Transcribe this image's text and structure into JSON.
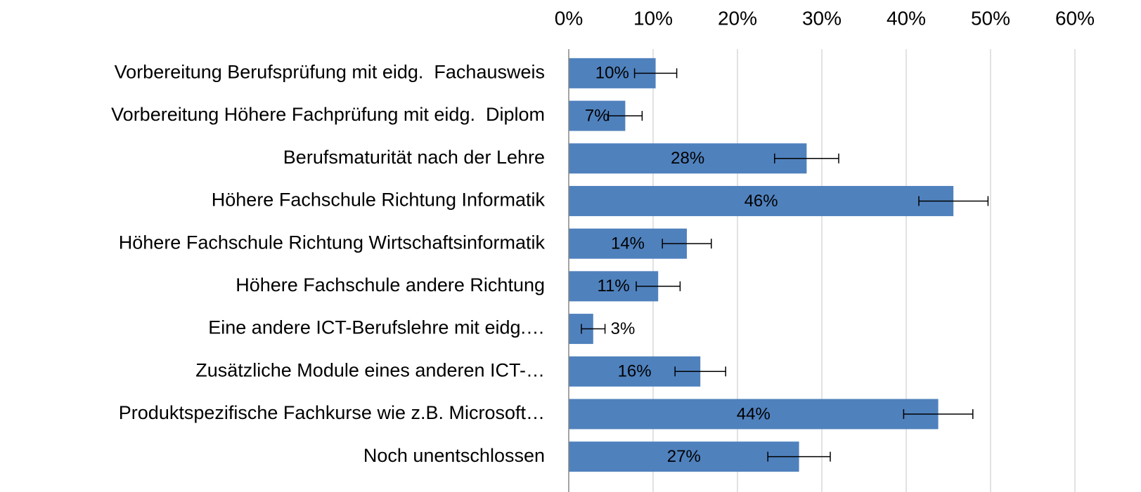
{
  "chart_data": {
    "type": "hbar",
    "categories": [
      "Vorbereitung Berufsprüfung mit eidg.  Fachausweis",
      "Vorbereitung Höhere Fachprüfung mit eidg.  Diplom",
      "Berufsmaturität nach der Lehre",
      "Höhere Fachschule Richtung Informatik",
      "Höhere Fachschule Richtung Wirtschaftsinformatik",
      "Höhere Fachschule andere Richtung",
      "Eine andere ICT-Berufslehre mit eidg.…",
      "Zusätzliche Module eines anderen ICT-…",
      "Produktspezifische Fachkurse wie z.B. Microsoft…",
      "Noch unentschlossen"
    ],
    "values": [
      10.3,
      6.7,
      28.2,
      45.6,
      14.0,
      10.6,
      2.9,
      15.6,
      43.8,
      27.3
    ],
    "value_labels": [
      "10%",
      "7%",
      "28%",
      "46%",
      "14%",
      "11%",
      "3%",
      "16%",
      "44%",
      "27%"
    ],
    "errors": [
      2.5,
      2.0,
      3.8,
      4.1,
      2.9,
      2.6,
      1.4,
      3.0,
      4.1,
      3.7
    ],
    "color": "#4f81bd",
    "xlim": [
      0,
      60
    ],
    "xticks": [
      {
        "value": 0,
        "label": "0%"
      },
      {
        "value": 10,
        "label": "10%"
      },
      {
        "value": 20,
        "label": "20%"
      },
      {
        "value": 30,
        "label": "30%"
      },
      {
        "value": 40,
        "label": "40%"
      },
      {
        "value": 50,
        "label": "50%"
      },
      {
        "value": 60,
        "label": "60%"
      }
    ],
    "grid": true
  }
}
